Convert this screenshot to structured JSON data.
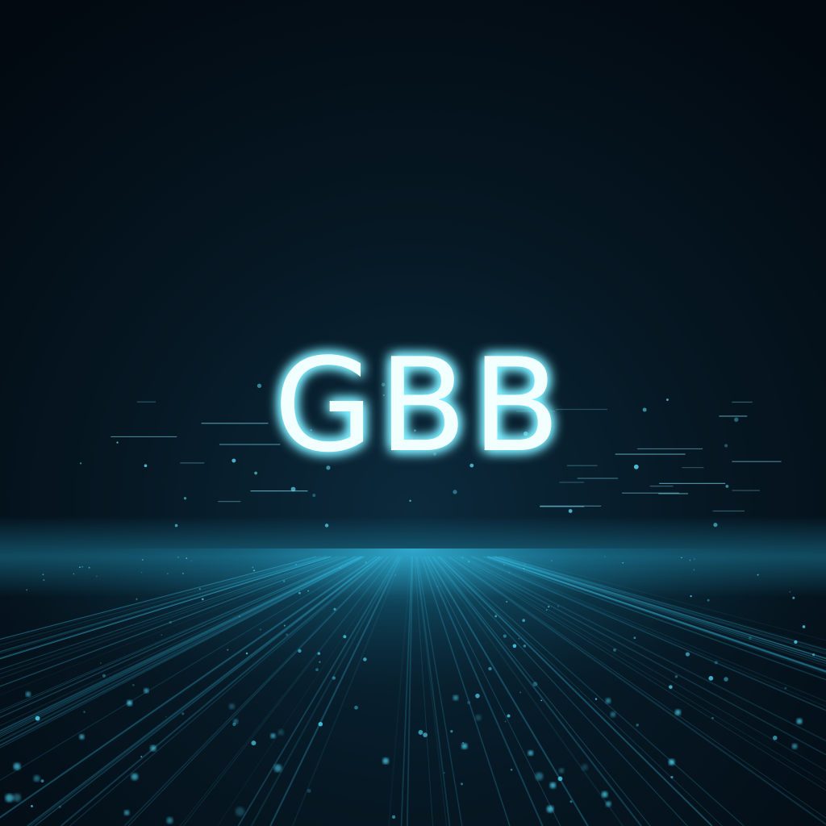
{
  "logo": {
    "text": "GBB"
  }
}
